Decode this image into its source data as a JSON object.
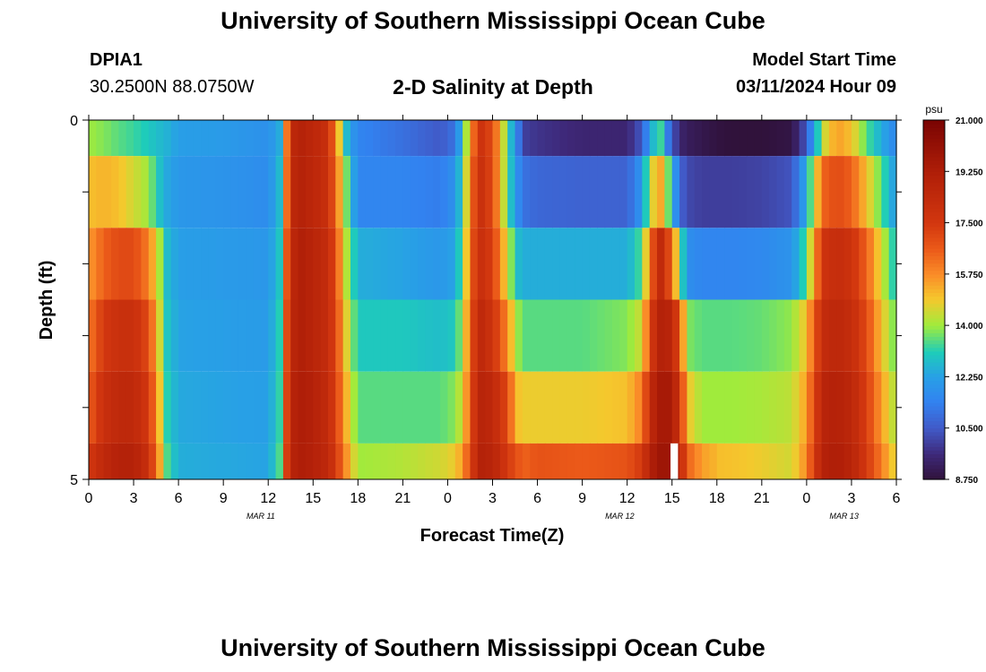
{
  "header": {
    "title": "University of Southern Mississippi Ocean Cube",
    "station_id": "DPIA1",
    "coords": "30.2500N  88.0750W",
    "chart_title": "2-D Salinity at Depth",
    "start_label": "Model Start Time",
    "start_value": "03/11/2024 Hour 09"
  },
  "footer": {
    "title": "University of Southern Mississippi Ocean Cube"
  },
  "chart_data": {
    "type": "heatmap",
    "xlabel": "Forecast Time(Z)",
    "ylabel": "Depth (ft)",
    "x_range_hours": [
      0,
      54
    ],
    "y_range": [
      0,
      5
    ],
    "x_tick_labels": [
      "0",
      "3",
      "6",
      "9",
      "12",
      "15",
      "18",
      "21",
      "0",
      "3",
      "6",
      "9",
      "12",
      "15",
      "18",
      "21",
      "0",
      "3",
      "6"
    ],
    "y_tick_labels": [
      "0",
      "5"
    ],
    "date_labels": [
      {
        "label": "MAR 11",
        "hour": 11.5
      },
      {
        "label": "MAR 12",
        "hour": 35.5
      },
      {
        "label": "MAR 13",
        "hour": 50.5
      }
    ],
    "colorbar": {
      "unit": "psu",
      "min": 8.75,
      "max": 21.0,
      "tick_labels": [
        "21.000",
        "19.250",
        "17.500",
        "15.750",
        "14.000",
        "12.250",
        "10.500",
        "8.750"
      ],
      "tick_values": [
        21.0,
        19.25,
        17.5,
        15.75,
        14.0,
        12.25,
        10.5,
        8.75
      ]
    },
    "depth_rows": [
      0,
      1,
      2,
      3,
      4,
      5
    ],
    "anchor_hours": [
      0,
      1,
      2,
      3,
      4,
      4.6,
      5.2,
      6,
      9,
      12,
      12.8,
      13.2,
      13.6,
      14.1,
      15,
      16,
      16.6,
      17.3,
      18,
      21,
      23.5,
      24.4,
      25,
      25.6,
      26.2,
      27,
      28,
      28.6,
      29.2,
      30,
      33,
      36,
      37,
      37.6,
      38.2,
      38.8,
      39.5,
      40,
      41,
      41.6,
      42.3,
      43,
      45,
      47,
      48,
      48.6,
      49.2,
      50,
      51,
      52,
      53,
      54
    ],
    "salinity_rows": [
      [
        14.0,
        13.8,
        13.5,
        13.3,
        13.0,
        12.8,
        12.6,
        12.2,
        12.1,
        11.8,
        12.5,
        15.8,
        18.5,
        19.0,
        18.6,
        18.0,
        15.5,
        12.5,
        11.5,
        11.0,
        10.5,
        11.0,
        12.8,
        16.0,
        17.8,
        17.0,
        13.5,
        11.5,
        10.0,
        9.8,
        9.5,
        9.5,
        10.5,
        12.5,
        13.5,
        11.0,
        9.5,
        9.2,
        9.0,
        8.9,
        8.8,
        8.75,
        8.75,
        8.9,
        10.5,
        12.5,
        14.5,
        15.5,
        15.0,
        13.5,
        12.5,
        11.5
      ],
      [
        15.0,
        15.2,
        15.0,
        14.5,
        14.0,
        13.0,
        12.4,
        12.0,
        11.9,
        11.7,
        12.8,
        16.0,
        18.5,
        19.0,
        18.6,
        18.0,
        16.0,
        13.5,
        11.5,
        11.5,
        11.3,
        11.8,
        13.2,
        16.5,
        18.0,
        17.0,
        13.5,
        11.8,
        11.0,
        10.8,
        10.7,
        10.7,
        12.0,
        14.5,
        15.5,
        13.5,
        10.8,
        10.2,
        10.0,
        10.0,
        10.0,
        10.0,
        10.1,
        10.4,
        12.5,
        14.8,
        16.5,
        17.0,
        16.5,
        15.0,
        13.5,
        12.0
      ],
      [
        15.5,
        16.5,
        17.0,
        17.0,
        16.0,
        14.5,
        12.8,
        12.2,
        12.1,
        12.0,
        13.0,
        16.5,
        18.5,
        19.2,
        18.8,
        18.2,
        16.5,
        14.0,
        12.5,
        12.3,
        12.0,
        12.3,
        13.5,
        16.8,
        18.0,
        17.3,
        14.5,
        12.8,
        12.5,
        12.5,
        12.5,
        12.5,
        13.5,
        16.5,
        18.5,
        17.0,
        14.0,
        11.8,
        11.5,
        11.5,
        11.5,
        11.5,
        11.6,
        11.9,
        13.5,
        16.0,
        17.8,
        18.2,
        17.8,
        16.5,
        14.5,
        12.8
      ],
      [
        16.0,
        17.5,
        18.0,
        18.0,
        17.0,
        15.0,
        13.0,
        12.3,
        12.2,
        12.1,
        13.2,
        16.8,
        18.6,
        19.2,
        18.8,
        18.2,
        16.8,
        14.5,
        13.0,
        13.0,
        12.8,
        13.0,
        14.0,
        17.0,
        18.5,
        17.8,
        15.8,
        14.0,
        13.5,
        13.5,
        13.5,
        13.8,
        14.5,
        17.5,
        19.0,
        18.8,
        17.0,
        13.8,
        13.5,
        13.5,
        13.5,
        13.5,
        13.6,
        13.9,
        15.0,
        17.0,
        18.3,
        18.6,
        18.2,
        17.0,
        15.0,
        13.5
      ],
      [
        16.5,
        18.0,
        18.5,
        18.5,
        17.5,
        15.5,
        13.2,
        12.4,
        12.3,
        12.2,
        13.3,
        17.0,
        18.8,
        19.3,
        19.0,
        18.3,
        17.0,
        15.0,
        13.5,
        13.5,
        13.5,
        13.8,
        14.5,
        17.2,
        18.8,
        18.5,
        17.0,
        15.0,
        14.8,
        14.8,
        14.8,
        15.0,
        16.0,
        18.5,
        19.5,
        19.5,
        18.0,
        15.0,
        14.0,
        14.0,
        14.0,
        14.0,
        14.1,
        14.3,
        15.5,
        17.5,
        18.8,
        19.0,
        18.6,
        17.3,
        15.5,
        14.0
      ],
      [
        17.5,
        18.5,
        19.0,
        19.0,
        18.0,
        16.0,
        13.5,
        12.5,
        12.4,
        12.3,
        13.5,
        17.2,
        18.8,
        19.3,
        19.0,
        18.5,
        17.3,
        15.5,
        14.0,
        14.2,
        14.5,
        14.8,
        15.5,
        17.5,
        19.0,
        18.8,
        17.5,
        16.8,
        16.5,
        16.8,
        16.6,
        16.8,
        17.5,
        19.2,
        19.8,
        19.8,
        18.8,
        16.5,
        15.5,
        15.3,
        15.0,
        15.0,
        14.8,
        14.5,
        15.8,
        17.8,
        19.0,
        19.3,
        18.8,
        17.5,
        16.0,
        14.5
      ]
    ],
    "missing_gap": {
      "hour_start": 38.9,
      "hour_end": 39.4,
      "depth_row": 5
    }
  }
}
